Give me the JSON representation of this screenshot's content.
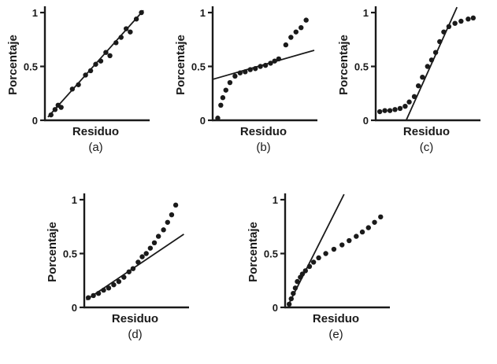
{
  "colors": {
    "ink": "#1a1a1a"
  },
  "chart_data": [
    {
      "type": "scatter",
      "caption": "(a)",
      "xlabel": "Residuo",
      "ylabel": "Porcentaje",
      "ylim": [
        0,
        1
      ],
      "yticks": [
        0,
        0.5,
        1
      ],
      "ytick_labels": [
        "0",
        "0.5",
        "1"
      ],
      "pattern": "points follow straight line (normal residuals)",
      "points": [
        [
          0.06,
          0.05
        ],
        [
          0.1,
          0.1
        ],
        [
          0.13,
          0.14
        ],
        [
          0.16,
          0.12
        ],
        [
          0.27,
          0.29
        ],
        [
          0.33,
          0.33
        ],
        [
          0.4,
          0.42
        ],
        [
          0.45,
          0.46
        ],
        [
          0.5,
          0.52
        ],
        [
          0.55,
          0.55
        ],
        [
          0.6,
          0.63
        ],
        [
          0.64,
          0.6
        ],
        [
          0.7,
          0.72
        ],
        [
          0.75,
          0.77
        ],
        [
          0.8,
          0.85
        ],
        [
          0.84,
          0.82
        ],
        [
          0.9,
          0.94
        ],
        [
          0.95,
          1.0
        ]
      ],
      "trend_line": [
        [
          0.03,
          0.03
        ],
        [
          0.97,
          1.02
        ]
      ]
    },
    {
      "type": "scatter",
      "caption": "(b)",
      "xlabel": "Residuo",
      "ylabel": "Porcentaje",
      "ylim": [
        0,
        1
      ],
      "yticks": [
        0,
        0.5,
        1
      ],
      "ytick_labels": [
        "0",
        "0.5",
        "1"
      ],
      "pattern": "steep tails with flat middle; shallow fitted line",
      "points": [
        [
          0.05,
          0.02
        ],
        [
          0.08,
          0.14
        ],
        [
          0.1,
          0.21
        ],
        [
          0.13,
          0.28
        ],
        [
          0.17,
          0.35
        ],
        [
          0.22,
          0.41
        ],
        [
          0.27,
          0.44
        ],
        [
          0.32,
          0.45
        ],
        [
          0.37,
          0.47
        ],
        [
          0.42,
          0.48
        ],
        [
          0.47,
          0.5
        ],
        [
          0.52,
          0.51
        ],
        [
          0.57,
          0.53
        ],
        [
          0.61,
          0.55
        ],
        [
          0.65,
          0.57
        ],
        [
          0.72,
          0.7
        ],
        [
          0.77,
          0.77
        ],
        [
          0.82,
          0.82
        ],
        [
          0.87,
          0.86
        ],
        [
          0.92,
          0.93
        ]
      ],
      "trend_line": [
        [
          0.0,
          0.38
        ],
        [
          1.0,
          0.65
        ]
      ]
    },
    {
      "type": "scatter",
      "caption": "(c)",
      "xlabel": "Residuo",
      "ylabel": "Porcentaje",
      "ylim": [
        0,
        1
      ],
      "yticks": [
        0,
        0.5,
        1
      ],
      "ytick_labels": [
        "0",
        "0.5",
        "1"
      ],
      "pattern": "S-shape: flat low tail, steep middle, flat high tail; steep fitted line",
      "points": [
        [
          0.04,
          0.08
        ],
        [
          0.09,
          0.09
        ],
        [
          0.14,
          0.09
        ],
        [
          0.19,
          0.1
        ],
        [
          0.24,
          0.11
        ],
        [
          0.29,
          0.13
        ],
        [
          0.33,
          0.17
        ],
        [
          0.38,
          0.22
        ],
        [
          0.42,
          0.32
        ],
        [
          0.46,
          0.4
        ],
        [
          0.51,
          0.5
        ],
        [
          0.55,
          0.56
        ],
        [
          0.59,
          0.63
        ],
        [
          0.63,
          0.73
        ],
        [
          0.67,
          0.82
        ],
        [
          0.72,
          0.87
        ],
        [
          0.78,
          0.9
        ],
        [
          0.84,
          0.92
        ],
        [
          0.91,
          0.94
        ],
        [
          0.96,
          0.95
        ]
      ],
      "trend_line": [
        [
          0.3,
          0.0
        ],
        [
          0.8,
          1.05
        ]
      ]
    },
    {
      "type": "scatter",
      "caption": "(d)",
      "xlabel": "Residuo",
      "ylabel": "Porcentaje",
      "ylim": [
        0,
        1
      ],
      "yticks": [
        0,
        0.5,
        1
      ],
      "ytick_labels": [
        "0",
        "0.5",
        "1"
      ],
      "pattern": "convex curve bending above the shallow fitted line at the right",
      "points": [
        [
          0.04,
          0.09
        ],
        [
          0.09,
          0.11
        ],
        [
          0.14,
          0.13
        ],
        [
          0.19,
          0.16
        ],
        [
          0.24,
          0.18
        ],
        [
          0.29,
          0.21
        ],
        [
          0.34,
          0.24
        ],
        [
          0.39,
          0.28
        ],
        [
          0.44,
          0.33
        ],
        [
          0.48,
          0.36
        ],
        [
          0.53,
          0.42
        ],
        [
          0.57,
          0.47
        ],
        [
          0.61,
          0.5
        ],
        [
          0.65,
          0.55
        ],
        [
          0.69,
          0.6
        ],
        [
          0.73,
          0.66
        ],
        [
          0.78,
          0.72
        ],
        [
          0.82,
          0.79
        ],
        [
          0.86,
          0.86
        ],
        [
          0.9,
          0.95
        ]
      ],
      "trend_line": [
        [
          0.02,
          0.07
        ],
        [
          0.98,
          0.68
        ]
      ]
    },
    {
      "type": "scatter",
      "caption": "(e)",
      "xlabel": "Residuo",
      "ylabel": "Porcentaje",
      "ylim": [
        0,
        1
      ],
      "yticks": [
        0,
        0.5,
        1
      ],
      "ytick_labels": [
        "0",
        "0.5",
        "1"
      ],
      "pattern": "concave curve flattening below the steep fitted line at the right",
      "points": [
        [
          0.04,
          0.03
        ],
        [
          0.06,
          0.08
        ],
        [
          0.08,
          0.13
        ],
        [
          0.1,
          0.18
        ],
        [
          0.12,
          0.24
        ],
        [
          0.15,
          0.28
        ],
        [
          0.17,
          0.31
        ],
        [
          0.2,
          0.34
        ],
        [
          0.24,
          0.38
        ],
        [
          0.28,
          0.42
        ],
        [
          0.33,
          0.46
        ],
        [
          0.4,
          0.5
        ],
        [
          0.48,
          0.54
        ],
        [
          0.56,
          0.58
        ],
        [
          0.63,
          0.62
        ],
        [
          0.7,
          0.66
        ],
        [
          0.76,
          0.7
        ],
        [
          0.82,
          0.74
        ],
        [
          0.88,
          0.79
        ],
        [
          0.94,
          0.84
        ]
      ],
      "trend_line": [
        [
          0.03,
          0.02
        ],
        [
          0.58,
          1.05
        ]
      ]
    }
  ]
}
